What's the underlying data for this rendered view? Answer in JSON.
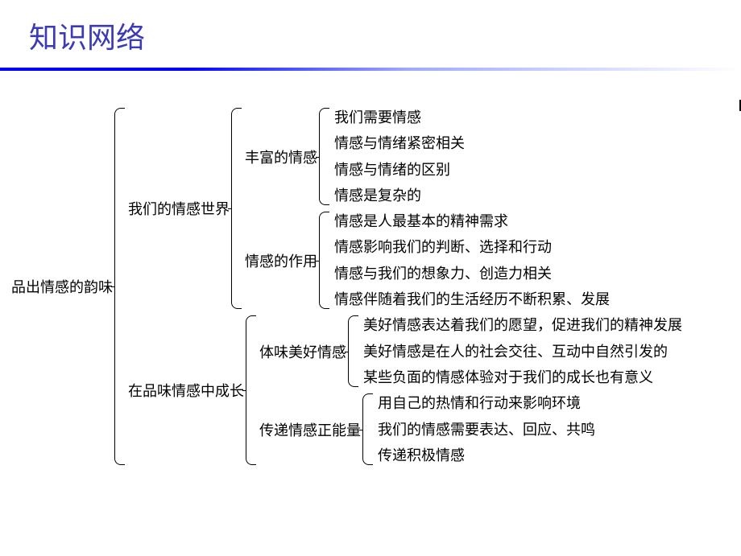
{
  "title": "知识网络",
  "colors": {
    "title_color": "#3b3bb5",
    "gradient_start": "#0000ff",
    "gradient_end": "#ffffff",
    "text_color": "#000000",
    "background": "#ffffff"
  },
  "typography": {
    "title_fontsize": 36,
    "body_fontsize": 18,
    "title_font": "Microsoft YaHei",
    "body_font": "SimSun"
  },
  "tree": {
    "label": "品出情感的韵味",
    "children": [
      {
        "label": "我们的情感世界",
        "children": [
          {
            "label": "丰富的情感",
            "children": [
              {
                "label": "我们需要情感"
              },
              {
                "label": "情感与情绪紧密相关"
              },
              {
                "label": "情感与情绪的区别"
              },
              {
                "label": "情感是复杂的"
              }
            ]
          },
          {
            "label": "情感的作用",
            "children": [
              {
                "label": "情感是人最基本的精神需求"
              },
              {
                "label": "情感影响我们的判断、选择和行动"
              },
              {
                "label": "情感与我们的想象力、创造力相关"
              },
              {
                "label": "情感伴随着我们的生活经历不断积累、发展"
              }
            ]
          }
        ]
      },
      {
        "label": "在品味情感中成长",
        "children": [
          {
            "label": "体味美好情感",
            "children": [
              {
                "label": "美好情感表达着我们的愿望，促进我们的精神发展"
              },
              {
                "label": "美好情感是在人的社会交往、互动中自然引发的"
              },
              {
                "label": "某些负面的情感体验对于我们的成长也有意义"
              }
            ]
          },
          {
            "label": "传递情感正能量",
            "children": [
              {
                "label": "用自己的热情和行动来影响环境"
              },
              {
                "label": "我们的情感需要表达、回应、共鸣"
              },
              {
                "label": "传递积极情感"
              }
            ]
          }
        ]
      }
    ]
  }
}
